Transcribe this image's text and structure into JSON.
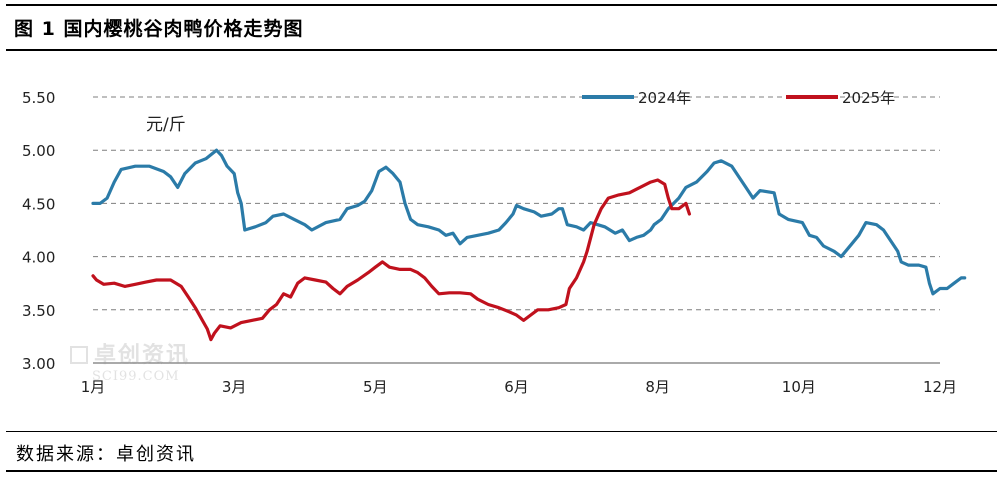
{
  "title": "图 1  国内樱桃谷肉鸭价格走势图",
  "source": "数据来源：卓创资讯",
  "watermark": {
    "name": "卓创资讯",
    "site": "SCI99.COM"
  },
  "colors": {
    "s2024": "#2b7ba8",
    "s2025": "#c0111d",
    "grid": "#7f7f7f"
  },
  "chart_data": {
    "type": "line",
    "unit": "元/斤",
    "ylim": [
      3.0,
      5.5
    ],
    "yticks": [
      "5.50",
      "5.00",
      "4.50",
      "4.00",
      "3.50",
      "3.00"
    ],
    "ytick_values": [
      5.5,
      5.0,
      4.5,
      4.0,
      3.5,
      3.0
    ],
    "xlim": [
      0,
      12
    ],
    "xticks": [
      "1月",
      "3月",
      "5月",
      "6月",
      "8月",
      "10月",
      "12月"
    ],
    "xtick_positions": [
      0,
      2,
      4,
      6,
      8,
      10,
      12
    ],
    "grid": "horizontal dashed",
    "legend_position": "top-right",
    "series": [
      {
        "name": "2024年",
        "color": "#2b7ba8",
        "points": [
          [
            0.0,
            4.5
          ],
          [
            0.1,
            4.5
          ],
          [
            0.2,
            4.55
          ],
          [
            0.3,
            4.7
          ],
          [
            0.4,
            4.82
          ],
          [
            0.6,
            4.85
          ],
          [
            0.8,
            4.85
          ],
          [
            1.0,
            4.8
          ],
          [
            1.1,
            4.75
          ],
          [
            1.2,
            4.65
          ],
          [
            1.3,
            4.78
          ],
          [
            1.45,
            4.88
          ],
          [
            1.6,
            4.92
          ],
          [
            1.75,
            5.0
          ],
          [
            1.82,
            4.95
          ],
          [
            1.9,
            4.85
          ],
          [
            2.0,
            4.78
          ],
          [
            2.05,
            4.6
          ],
          [
            2.1,
            4.5
          ],
          [
            2.15,
            4.25
          ],
          [
            2.3,
            4.28
          ],
          [
            2.45,
            4.32
          ],
          [
            2.55,
            4.38
          ],
          [
            2.7,
            4.4
          ],
          [
            2.85,
            4.35
          ],
          [
            3.0,
            4.3
          ],
          [
            3.1,
            4.25
          ],
          [
            3.3,
            4.32
          ],
          [
            3.5,
            4.35
          ],
          [
            3.6,
            4.45
          ],
          [
            3.75,
            4.48
          ],
          [
            3.85,
            4.52
          ],
          [
            3.95,
            4.62
          ],
          [
            4.05,
            4.8
          ],
          [
            4.15,
            4.84
          ],
          [
            4.25,
            4.78
          ],
          [
            4.35,
            4.7
          ],
          [
            4.42,
            4.5
          ],
          [
            4.5,
            4.35
          ],
          [
            4.6,
            4.3
          ],
          [
            4.75,
            4.28
          ],
          [
            4.9,
            4.25
          ],
          [
            5.0,
            4.2
          ],
          [
            5.1,
            4.22
          ],
          [
            5.2,
            4.12
          ],
          [
            5.3,
            4.18
          ],
          [
            5.45,
            4.2
          ],
          [
            5.6,
            4.22
          ],
          [
            5.75,
            4.25
          ],
          [
            5.85,
            4.32
          ],
          [
            5.95,
            4.4
          ],
          [
            6.0,
            4.48
          ],
          [
            6.1,
            4.45
          ],
          [
            6.25,
            4.42
          ],
          [
            6.35,
            4.38
          ],
          [
            6.5,
            4.4
          ],
          [
            6.6,
            4.45
          ],
          [
            6.65,
            4.45
          ],
          [
            6.72,
            4.3
          ],
          [
            6.85,
            4.28
          ],
          [
            6.95,
            4.25
          ],
          [
            7.05,
            4.32
          ],
          [
            7.15,
            4.3
          ],
          [
            7.25,
            4.28
          ],
          [
            7.4,
            4.22
          ],
          [
            7.5,
            4.25
          ],
          [
            7.6,
            4.15
          ],
          [
            7.7,
            4.18
          ],
          [
            7.8,
            4.2
          ],
          [
            7.9,
            4.25
          ],
          [
            7.95,
            4.3
          ],
          [
            8.05,
            4.35
          ],
          [
            8.15,
            4.45
          ],
          [
            8.3,
            4.55
          ],
          [
            8.4,
            4.65
          ],
          [
            8.55,
            4.7
          ],
          [
            8.7,
            4.8
          ],
          [
            8.8,
            4.88
          ],
          [
            8.9,
            4.9
          ],
          [
            9.05,
            4.85
          ],
          [
            9.15,
            4.75
          ],
          [
            9.25,
            4.65
          ],
          [
            9.35,
            4.55
          ],
          [
            9.45,
            4.62
          ],
          [
            9.65,
            4.6
          ],
          [
            9.72,
            4.4
          ],
          [
            9.85,
            4.35
          ],
          [
            10.05,
            4.32
          ],
          [
            10.15,
            4.2
          ],
          [
            10.25,
            4.18
          ],
          [
            10.35,
            4.1
          ],
          [
            10.5,
            4.05
          ],
          [
            10.6,
            4.0
          ],
          [
            10.75,
            4.12
          ],
          [
            10.85,
            4.2
          ],
          [
            10.95,
            4.32
          ],
          [
            11.1,
            4.3
          ],
          [
            11.2,
            4.25
          ],
          [
            11.3,
            4.15
          ],
          [
            11.4,
            4.05
          ],
          [
            11.45,
            3.95
          ],
          [
            11.55,
            3.92
          ],
          [
            11.7,
            3.92
          ],
          [
            11.8,
            3.9
          ],
          [
            11.85,
            3.75
          ],
          [
            11.9,
            3.65
          ],
          [
            12.0,
            3.7
          ],
          [
            12.1,
            3.7
          ],
          [
            12.2,
            3.75
          ],
          [
            12.3,
            3.8
          ],
          [
            12.35,
            3.8
          ]
        ]
      },
      {
        "name": "2025年",
        "color": "#c0111d",
        "points": [
          [
            0.0,
            3.82
          ],
          [
            0.05,
            3.78
          ],
          [
            0.15,
            3.74
          ],
          [
            0.3,
            3.75
          ],
          [
            0.45,
            3.72
          ],
          [
            0.6,
            3.74
          ],
          [
            0.75,
            3.76
          ],
          [
            0.9,
            3.78
          ],
          [
            1.1,
            3.78
          ],
          [
            1.25,
            3.72
          ],
          [
            1.35,
            3.62
          ],
          [
            1.45,
            3.52
          ],
          [
            1.55,
            3.4
          ],
          [
            1.62,
            3.32
          ],
          [
            1.67,
            3.22
          ],
          [
            1.72,
            3.28
          ],
          [
            1.8,
            3.35
          ],
          [
            1.95,
            3.33
          ],
          [
            2.1,
            3.38
          ],
          [
            2.25,
            3.4
          ],
          [
            2.4,
            3.42
          ],
          [
            2.5,
            3.5
          ],
          [
            2.6,
            3.55
          ],
          [
            2.7,
            3.65
          ],
          [
            2.8,
            3.62
          ],
          [
            2.9,
            3.75
          ],
          [
            3.0,
            3.8
          ],
          [
            3.15,
            3.78
          ],
          [
            3.3,
            3.76
          ],
          [
            3.4,
            3.7
          ],
          [
            3.5,
            3.65
          ],
          [
            3.6,
            3.72
          ],
          [
            3.75,
            3.78
          ],
          [
            3.9,
            3.85
          ],
          [
            4.0,
            3.9
          ],
          [
            4.1,
            3.95
          ],
          [
            4.2,
            3.9
          ],
          [
            4.35,
            3.88
          ],
          [
            4.5,
            3.88
          ],
          [
            4.6,
            3.85
          ],
          [
            4.7,
            3.8
          ],
          [
            4.8,
            3.72
          ],
          [
            4.9,
            3.65
          ],
          [
            5.05,
            3.66
          ],
          [
            5.2,
            3.66
          ],
          [
            5.35,
            3.65
          ],
          [
            5.45,
            3.6
          ],
          [
            5.6,
            3.55
          ],
          [
            5.75,
            3.52
          ],
          [
            5.9,
            3.48
          ],
          [
            6.0,
            3.45
          ],
          [
            6.1,
            3.4
          ],
          [
            6.2,
            3.45
          ],
          [
            6.3,
            3.5
          ],
          [
            6.45,
            3.5
          ],
          [
            6.6,
            3.52
          ],
          [
            6.7,
            3.55
          ],
          [
            6.75,
            3.7
          ],
          [
            6.85,
            3.8
          ],
          [
            6.95,
            3.95
          ],
          [
            7.0,
            4.05
          ],
          [
            7.1,
            4.3
          ],
          [
            7.2,
            4.45
          ],
          [
            7.3,
            4.55
          ],
          [
            7.45,
            4.58
          ],
          [
            7.6,
            4.6
          ],
          [
            7.75,
            4.65
          ],
          [
            7.9,
            4.7
          ],
          [
            8.0,
            4.72
          ],
          [
            8.1,
            4.68
          ],
          [
            8.15,
            4.55
          ],
          [
            8.2,
            4.45
          ],
          [
            8.3,
            4.45
          ],
          [
            8.4,
            4.5
          ],
          [
            8.45,
            4.4
          ]
        ]
      }
    ]
  }
}
